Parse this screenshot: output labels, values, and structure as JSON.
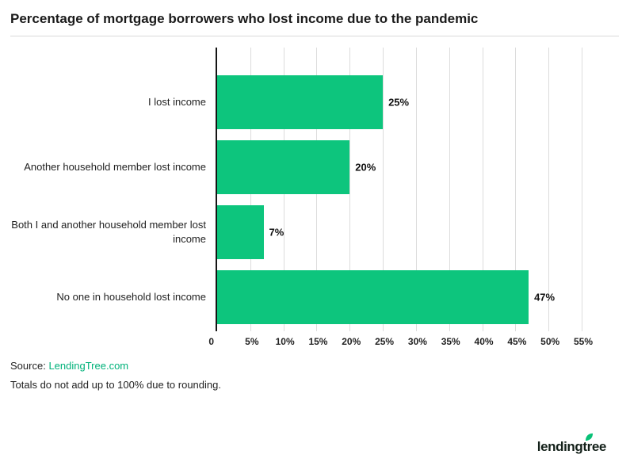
{
  "header": {
    "title": "Percentage of mortgage borrowers who lost income due to the pandemic"
  },
  "chart_data": {
    "type": "bar",
    "orientation": "horizontal",
    "title": "Percentage of mortgage borrowers who lost income due to the pandemic",
    "categories": [
      "I lost income",
      "Another household member lost income",
      "Both I and another household member lost income",
      "No one in household lost income"
    ],
    "values": [
      25,
      20,
      7,
      47
    ],
    "value_labels": [
      "25%",
      "20%",
      "7%",
      "47%"
    ],
    "x_ticks": [
      "0",
      "5%",
      "10%",
      "15%",
      "20%",
      "25%",
      "30%",
      "35%",
      "40%",
      "45%",
      "50%",
      "55%"
    ],
    "xlim": [
      0,
      55
    ],
    "xlabel": "",
    "ylabel": "",
    "grid": true,
    "legend": false,
    "bar_color": "#0dc57d",
    "gridline_color": "#dcdcdc",
    "axis_color": "#151515"
  },
  "footer": {
    "source_label": "Source:",
    "source_link": "LendingTree.com",
    "note": "Totals do not add up to 100% due to rounding.",
    "logo_text": "lendingtree"
  },
  "colors": {
    "accent_green": "#0dc57d",
    "link_green": "#00b27a",
    "logo_leaf": "#08c177"
  }
}
